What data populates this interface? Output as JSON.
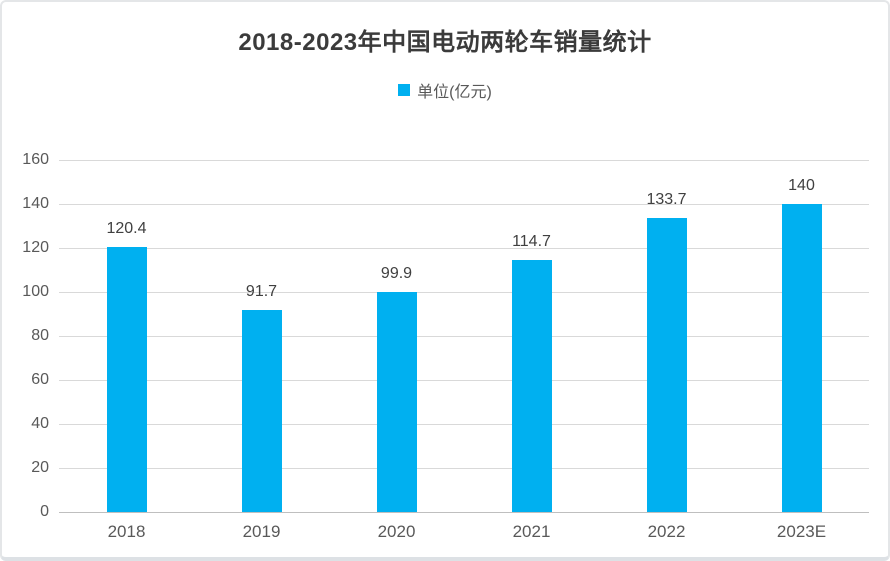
{
  "window": {
    "background": "#ffffff",
    "border_color": "#e4e6e8"
  },
  "chart_data": {
    "type": "bar",
    "title": "2018-2023年中国电动两轮车销量统计",
    "title_color": "#3b3b3b",
    "legend": {
      "label": "单位(亿元)",
      "swatch_color": "#00B0F0",
      "position": "top-center"
    },
    "categories": [
      "2018",
      "2019",
      "2020",
      "2021",
      "2022",
      "2023E"
    ],
    "values": [
      120.4,
      91.7,
      99.9,
      114.7,
      133.7,
      140
    ],
    "data_labels": [
      "120.4",
      "91.7",
      "99.9",
      "114.7",
      "133.7",
      "140"
    ],
    "xlabel": "",
    "ylabel": "",
    "ylim": [
      0,
      160
    ],
    "yticks": [
      0,
      20,
      40,
      60,
      80,
      100,
      120,
      140,
      160
    ],
    "grid": true,
    "bar_color": "#00B0F0",
    "gridline_color": "#d9d9d9",
    "axis_line_color": "#bfbfbf",
    "tick_label_color": "#595959",
    "data_label_color": "#404040"
  }
}
